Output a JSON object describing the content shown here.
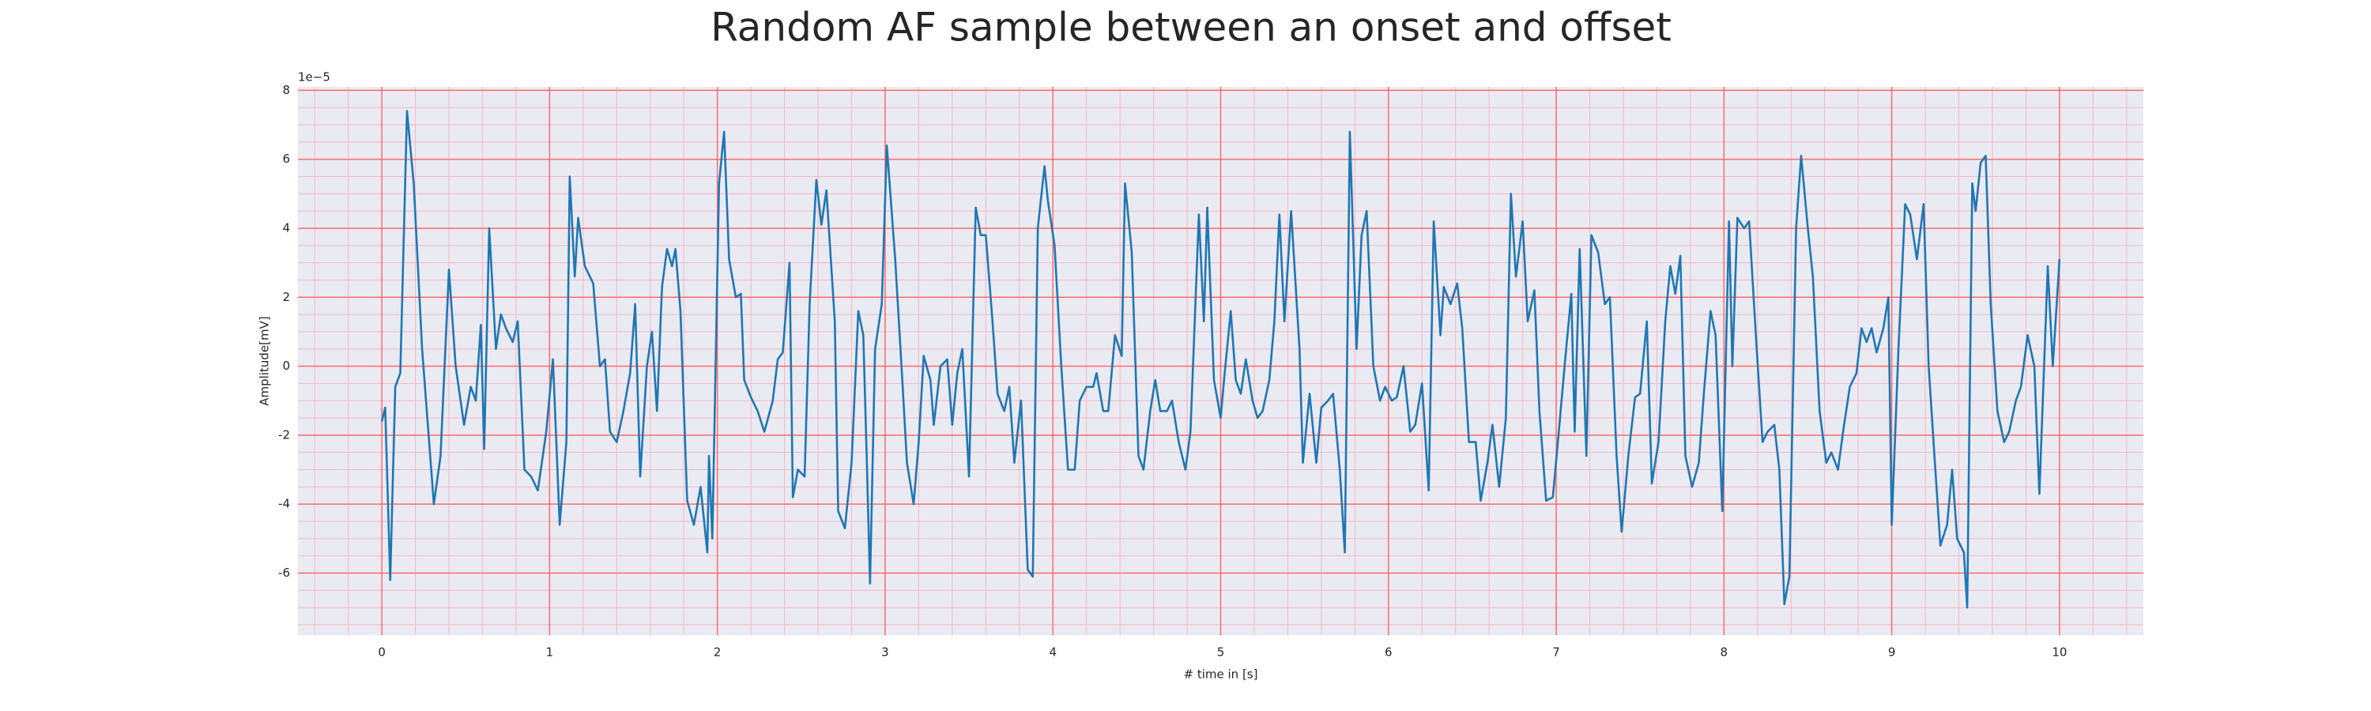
{
  "chart_data": {
    "type": "line",
    "title": "Random AF sample between an onset and offset",
    "xlabel": "# time in [s]",
    "ylabel": "Amplitude[mV]",
    "y_offset_label": "1e−5",
    "color": "#1f77b4",
    "xlim": [
      -0.5,
      10.5
    ],
    "ylim": [
      -7.8,
      8.1
    ],
    "xticks": [
      0,
      1,
      2,
      3,
      4,
      5,
      6,
      7,
      8,
      9,
      10
    ],
    "yticks": [
      -6,
      -4,
      -2,
      0,
      2,
      4,
      6,
      8
    ],
    "grid": true,
    "grid_color": "#ff6b6b",
    "minor_grid": true,
    "minor_grid_color": "#f4b8c4",
    "xminor": 0.2,
    "yminor": 0.5,
    "background": "#eaeaf2",
    "x": [
      0.0,
      0.02,
      0.05,
      0.08,
      0.11,
      0.15,
      0.19,
      0.24,
      0.31,
      0.35,
      0.4,
      0.44,
      0.49,
      0.53,
      0.56,
      0.59,
      0.61,
      0.64,
      0.68,
      0.71,
      0.74,
      0.78,
      0.81,
      0.85,
      0.89,
      0.93,
      0.98,
      1.02,
      1.06,
      1.1,
      1.12,
      1.15,
      1.17,
      1.21,
      1.26,
      1.3,
      1.33,
      1.36,
      1.4,
      1.44,
      1.48,
      1.51,
      1.54,
      1.58,
      1.61,
      1.64,
      1.67,
      1.7,
      1.73,
      1.75,
      1.78,
      1.82,
      1.86,
      1.9,
      1.94,
      1.95,
      1.97,
      2.01,
      2.04,
      2.07,
      2.11,
      2.14,
      2.16,
      2.2,
      2.24,
      2.28,
      2.33,
      2.36,
      2.39,
      2.43,
      2.45,
      2.48,
      2.52,
      2.55,
      2.59,
      2.62,
      2.65,
      2.7,
      2.72,
      2.76,
      2.8,
      2.84,
      2.87,
      2.89,
      2.91,
      2.94,
      2.98,
      3.01,
      3.06,
      3.1,
      3.13,
      3.17,
      3.2,
      3.23,
      3.27,
      3.29,
      3.33,
      3.37,
      3.4,
      3.43,
      3.46,
      3.5,
      3.54,
      3.57,
      3.6,
      3.64,
      3.67,
      3.71,
      3.74,
      3.77,
      3.81,
      3.85,
      3.88,
      3.91,
      3.95,
      3.97,
      4.01,
      4.05,
      4.09,
      4.13,
      4.16,
      4.2,
      4.24,
      4.26,
      4.3,
      4.33,
      4.37,
      4.41,
      4.43,
      4.47,
      4.51,
      4.54,
      4.58,
      4.61,
      4.64,
      4.68,
      4.71,
      4.75,
      4.79,
      4.82,
      4.87,
      4.9,
      4.92,
      4.96,
      5.0,
      5.02,
      5.06,
      5.09,
      5.12,
      5.15,
      5.19,
      5.22,
      5.25,
      5.29,
      5.32,
      5.35,
      5.38,
      5.42,
      5.47,
      5.49,
      5.53,
      5.57,
      5.6,
      5.64,
      5.67,
      5.71,
      5.74,
      5.77,
      5.81,
      5.84,
      5.87,
      5.91,
      5.95,
      5.98,
      6.02,
      6.05,
      6.09,
      6.13,
      6.16,
      6.2,
      6.24,
      6.27,
      6.31,
      6.33,
      6.37,
      6.41,
      6.44,
      6.48,
      6.52,
      6.55,
      6.59,
      6.62,
      6.66,
      6.7,
      6.73,
      6.76,
      6.8,
      6.83,
      6.87,
      6.9,
      6.94,
      6.98,
      7.01,
      7.05,
      7.09,
      7.11,
      7.14,
      7.18,
      7.21,
      7.25,
      7.29,
      7.32,
      7.36,
      7.39,
      7.43,
      7.47,
      7.5,
      7.54,
      7.57,
      7.61,
      7.65,
      7.68,
      7.71,
      7.74,
      7.77,
      7.81,
      7.85,
      7.88,
      7.92,
      7.95,
      7.99,
      8.03,
      8.05,
      8.08,
      8.12,
      8.15,
      8.19,
      8.23,
      8.26,
      8.3,
      8.33,
      8.36,
      8.39,
      8.43,
      8.46,
      8.5,
      8.53,
      8.57,
      8.61,
      8.64,
      8.68,
      8.71,
      8.75,
      8.79,
      8.82,
      8.85,
      8.88,
      8.91,
      8.95,
      8.98,
      9.0,
      9.04,
      9.08,
      9.11,
      9.15,
      9.19,
      9.22,
      9.26,
      9.29,
      9.33,
      9.36,
      9.39,
      9.43,
      9.45,
      9.48,
      9.5,
      9.53,
      9.56,
      9.59,
      9.63,
      9.67,
      9.7,
      9.74,
      9.77,
      9.81,
      9.85,
      9.88,
      9.93,
      9.96,
      10.0
    ],
    "values": [
      -1.6,
      -1.2,
      -6.2,
      -0.6,
      -0.2,
      7.4,
      5.3,
      0.5,
      -4.0,
      -2.6,
      2.8,
      0,
      -1.7,
      -0.6,
      -1.0,
      1.2,
      -2.4,
      4.0,
      0.5,
      1.5,
      1.1,
      0.7,
      1.3,
      -3.0,
      -3.2,
      -3.6,
      -1.9,
      0.2,
      -4.6,
      -2.2,
      5.5,
      2.6,
      4.3,
      2.9,
      2.4,
      0,
      0.2,
      -1.9,
      -2.2,
      -1.3,
      -0.2,
      1.8,
      -3.2,
      0,
      1.0,
      -1.3,
      2.3,
      3.4,
      2.9,
      3.4,
      1.6,
      -3.9,
      -4.6,
      -3.5,
      -5.4,
      -2.6,
      -5.0,
      5.3,
      6.8,
      3.1,
      2.0,
      2.1,
      -0.4,
      -0.9,
      -1.3,
      -1.9,
      -1.0,
      0.2,
      0.4,
      3.0,
      -3.8,
      -3.0,
      -3.2,
      1.8,
      5.4,
      4.1,
      5.1,
      1.3,
      -4.2,
      -4.7,
      -2.8,
      1.6,
      0.9,
      -2.6,
      -6.3,
      0.5,
      1.8,
      6.4,
      3.1,
      -0.2,
      -2.8,
      -4.0,
      -2.2,
      0.3,
      -0.4,
      -1.7,
      0,
      0.2,
      -1.7,
      -0.2,
      0.5,
      -3.2,
      4.6,
      3.8,
      3.8,
      1.3,
      -0.8,
      -1.3,
      -0.6,
      -2.8,
      -1.0,
      -5.9,
      -6.1,
      4.0,
      5.8,
      4.8,
      3.5,
      0,
      -3.0,
      -3.0,
      -1.0,
      -0.6,
      -0.6,
      -0.2,
      -1.3,
      -1.3,
      0.9,
      0.3,
      5.3,
      3.3,
      -2.6,
      -3.0,
      -1.3,
      -0.4,
      -1.3,
      -1.3,
      -1.0,
      -2.2,
      -3.0,
      -1.9,
      4.4,
      1.3,
      4.6,
      -0.4,
      -1.5,
      -0.4,
      1.6,
      -0.4,
      -0.8,
      0.2,
      -1.0,
      -1.5,
      -1.3,
      -0.4,
      1.3,
      4.4,
      1.3,
      4.5,
      0.5,
      -2.8,
      -0.8,
      -2.8,
      -1.2,
      -1.0,
      -0.8,
      -3.0,
      -5.4,
      6.8,
      0.5,
      3.8,
      4.5,
      0,
      -1.0,
      -0.6,
      -1.0,
      -0.9,
      0,
      -1.9,
      -1.7,
      -0.5,
      -3.6,
      4.2,
      0.9,
      2.3,
      1.8,
      2.4,
      1.1,
      -2.2,
      -2.2,
      -3.9,
      -2.8,
      -1.7,
      -3.5,
      -1.5,
      5.0,
      2.6,
      4.2,
      1.3,
      2.2,
      -1.3,
      -3.9,
      -3.8,
      -2.2,
      0,
      2.1,
      -1.9,
      3.4,
      -2.6,
      3.8,
      3.3,
      1.8,
      2.0,
      -2.6,
      -4.8,
      -2.6,
      -0.9,
      -0.8,
      1.3,
      -3.4,
      -2.2,
      1.3,
      2.9,
      2.1,
      3.2,
      -2.6,
      -3.5,
      -2.8,
      -0.8,
      1.6,
      0.9,
      -4.2,
      4.2,
      0,
      4.3,
      4.0,
      4.2,
      0.9,
      -2.2,
      -1.9,
      -1.7,
      -3.0,
      -6.9,
      -6.1,
      4.0,
      6.1,
      4.0,
      2.6,
      -1.3,
      -2.8,
      -2.5,
      -3.0,
      -1.9,
      -0.6,
      -0.2,
      1.1,
      0.7,
      1.1,
      0.4,
      1.1,
      2.0,
      -4.6,
      0.5,
      4.7,
      4.4,
      3.1,
      4.7,
      0,
      -3.0,
      -5.2,
      -4.6,
      -3.0,
      -5.0,
      -5.4,
      -7.0,
      5.3,
      4.5,
      5.9,
      6.1,
      1.8,
      -1.3,
      -2.2,
      -1.9,
      -1.0,
      -0.6,
      0.9,
      0,
      -3.7,
      2.9,
      0,
      3.1
    ]
  }
}
